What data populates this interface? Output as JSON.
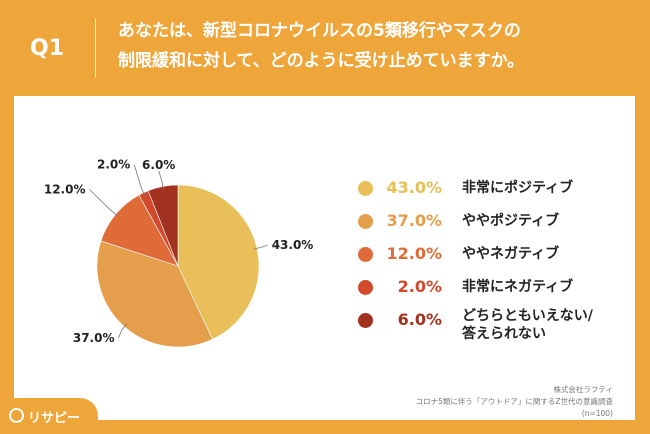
{
  "header": {
    "q_label": "Q1",
    "question_line1": "あなたは、新型コロナウイルスの5類移行やマスクの",
    "question_line2": "制限緩和に対して、どのように受け止めていますか。"
  },
  "colors": {
    "background": "#EEA63A",
    "panel": "#FFFFFF",
    "series": [
      "#E8BF58",
      "#E59E4C",
      "#DF6B38",
      "#D24A2C",
      "#A3311F"
    ]
  },
  "chart_data": {
    "type": "pie",
    "start": "12 o'clock, clockwise",
    "slices": [
      {
        "value": 43.0,
        "label": "43.0%",
        "name": "非常にポジティブ"
      },
      {
        "value": 37.0,
        "label": "37.0%",
        "name": "ややポジティブ"
      },
      {
        "value": 12.0,
        "label": "12.0%",
        "name": "ややネガティブ"
      },
      {
        "value": 2.0,
        "label": "2.0%",
        "name": "非常にネガティブ"
      },
      {
        "value": 6.0,
        "label": "6.0%",
        "name": "どちらともいえない/答えられない"
      }
    ],
    "legend_position": "right"
  },
  "legend": [
    {
      "pct": "43.0%",
      "line1": "非常にポジティブ",
      "line2": ""
    },
    {
      "pct": "37.0%",
      "line1": "ややポジティブ",
      "line2": ""
    },
    {
      "pct": "12.0%",
      "line1": "ややネガティブ",
      "line2": ""
    },
    {
      "pct": "2.0%",
      "line1": "非常にネガティブ",
      "line2": ""
    },
    {
      "pct": "6.0%",
      "line1": "どちらともいえない/",
      "line2": "答えられない"
    }
  ],
  "source": {
    "company": "株式会社ラフティ",
    "survey": "コロナ5類に伴う「アウトドア」に関するZ世代の意識調査",
    "n": "(n=100)"
  },
  "logo": {
    "text": "リサピー",
    "icon": "magnifier-icon"
  }
}
